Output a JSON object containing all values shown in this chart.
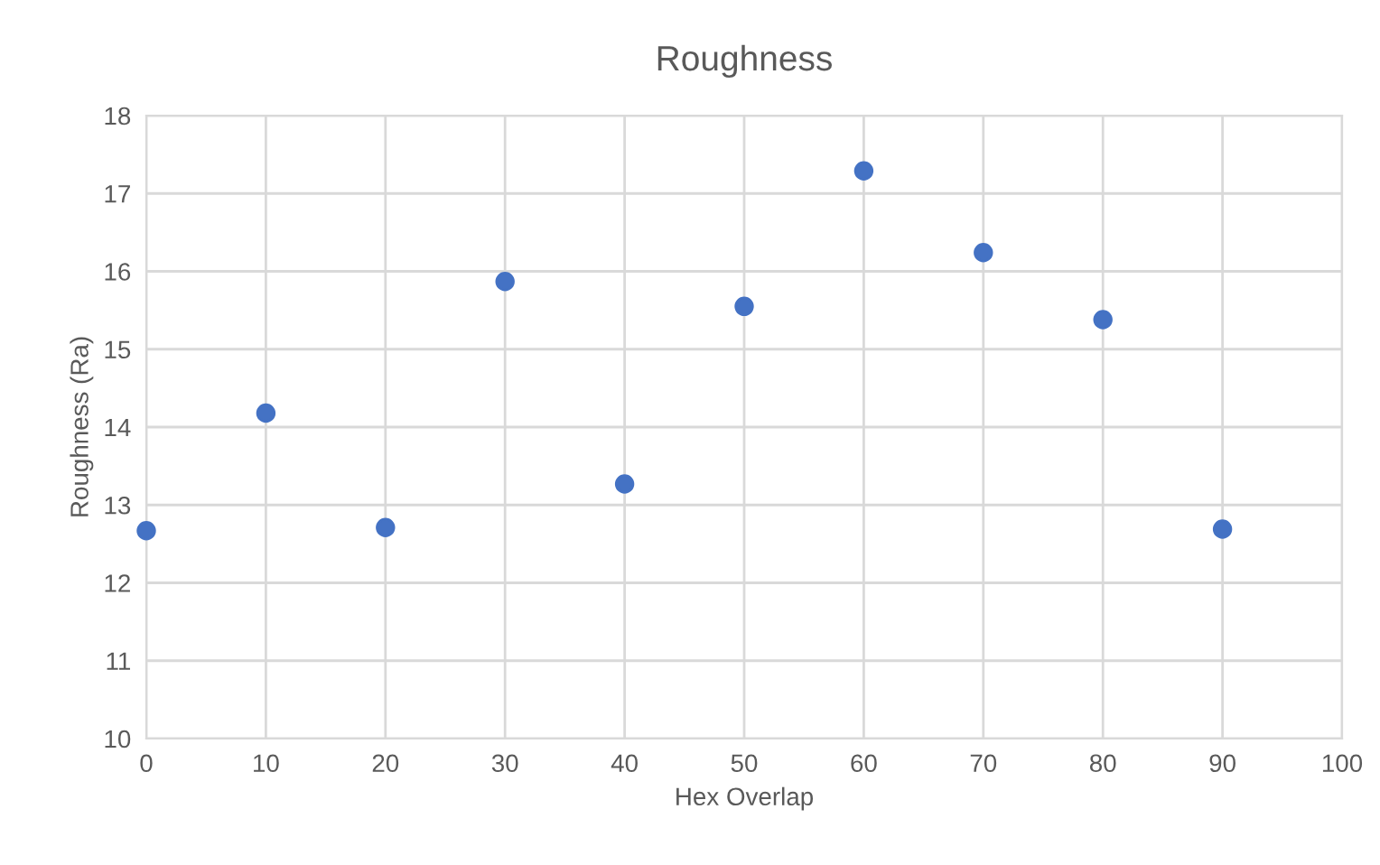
{
  "chart_data": {
    "type": "scatter",
    "title": "Roughness",
    "xlabel": "Hex Overlap",
    "ylabel": "Roughness (Ra)",
    "x": [
      0,
      10,
      20,
      30,
      40,
      50,
      60,
      70,
      80,
      90
    ],
    "series": [
      {
        "color": "#4472c4",
        "values": [
          12.67,
          14.18,
          12.71,
          15.87,
          13.27,
          15.55,
          17.29,
          16.24,
          15.38,
          12.69
        ]
      }
    ],
    "xlim": [
      0,
      100
    ],
    "xticks": [
      0,
      10,
      20,
      30,
      40,
      50,
      60,
      70,
      80,
      90,
      100
    ],
    "ylim": [
      10,
      18
    ],
    "yticks": [
      10,
      11,
      12,
      13,
      14,
      15,
      16,
      17,
      18
    ],
    "grid": true,
    "marker": "circle"
  }
}
